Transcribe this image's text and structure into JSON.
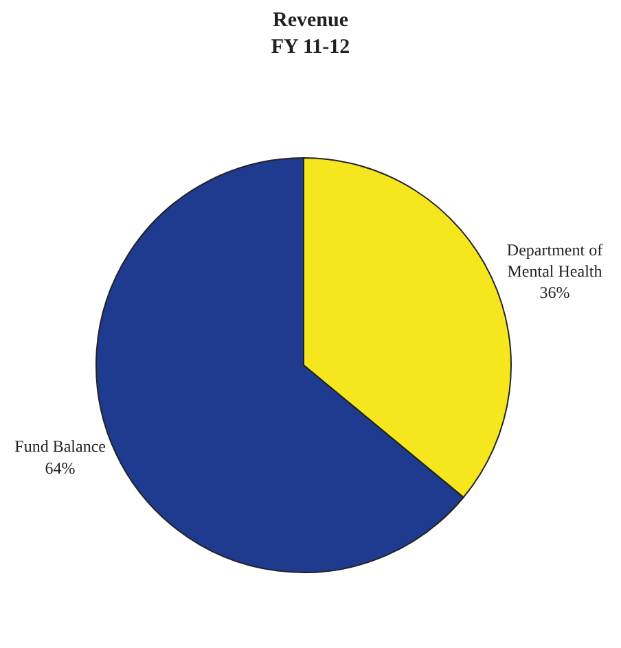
{
  "chart_data": {
    "type": "pie",
    "title": "Revenue",
    "subtitle": "FY 11-12",
    "categories": [
      "Department of Mental Health",
      "Fund Balance"
    ],
    "values": [
      36,
      64
    ],
    "colors": [
      "#f5e61e",
      "#1f3b8f"
    ],
    "value_labels": [
      "36%",
      "64%"
    ],
    "legend": false
  }
}
